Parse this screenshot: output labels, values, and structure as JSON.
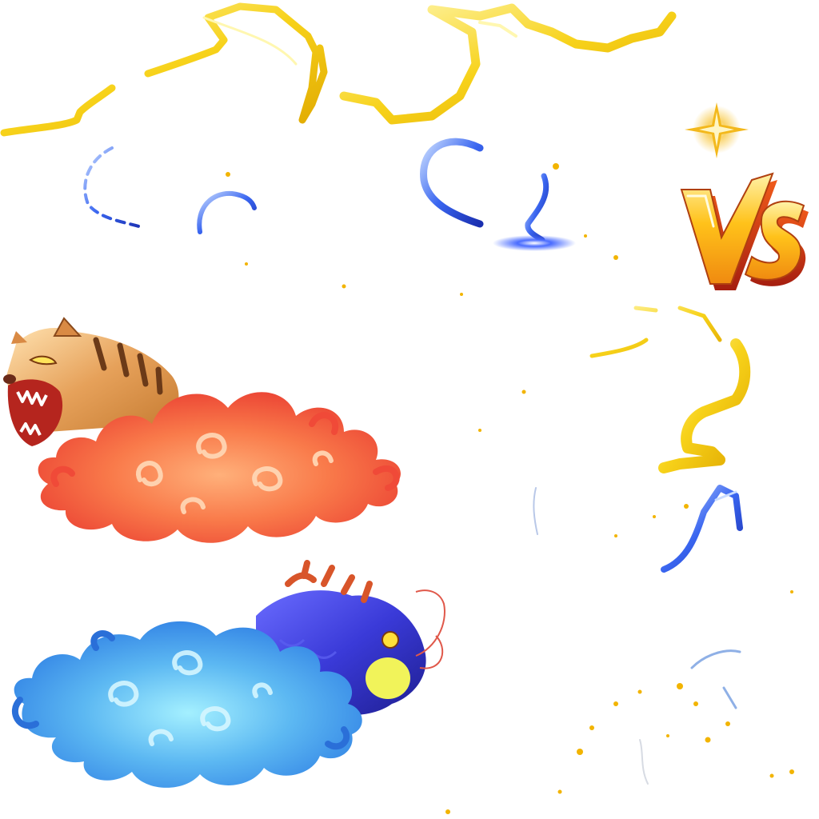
{
  "versus": {
    "label": "VS"
  },
  "fighters": [
    {
      "name": "tiger",
      "aura_color": "#f4583c",
      "aura_highlight": "#ffb07a"
    },
    {
      "name": "dragon",
      "aura_color": "#2f8cf0",
      "aura_highlight": "#7ad7ff"
    }
  ],
  "colors": {
    "lightning_gold": "#f7d21a",
    "lightning_gold_light": "#fff39a",
    "lightning_blue": "#2a55e6",
    "lightning_blue_light": "#a7c4ff",
    "vs_gold": "#ffc21a",
    "vs_orange": "#e2461b",
    "background": "#ffffff"
  }
}
